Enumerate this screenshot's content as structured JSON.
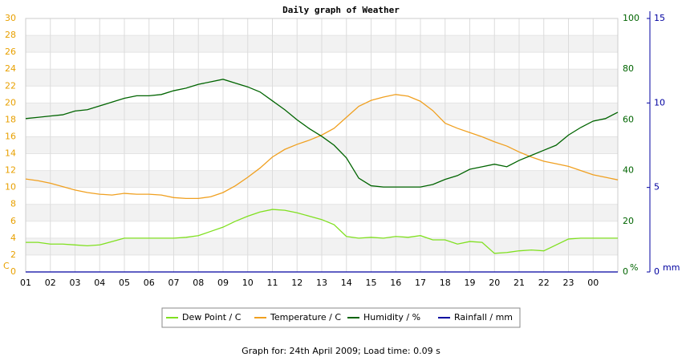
{
  "chart_data": {
    "type": "line",
    "title": "Daily graph of Weather",
    "footer": "Graph for: 24th April 2009; Load time: 0.09 s",
    "xlim": [
      0,
      24
    ],
    "xticks": [
      {
        "value": 0,
        "label": "01"
      },
      {
        "value": 1,
        "label": "02"
      },
      {
        "value": 2,
        "label": "03"
      },
      {
        "value": 3,
        "label": "04"
      },
      {
        "value": 4,
        "label": "05"
      },
      {
        "value": 5,
        "label": "06"
      },
      {
        "value": 6,
        "label": "07"
      },
      {
        "value": 7,
        "label": "08"
      },
      {
        "value": 8,
        "label": "09"
      },
      {
        "value": 9,
        "label": "10"
      },
      {
        "value": 10,
        "label": "11"
      },
      {
        "value": 11,
        "label": "12"
      },
      {
        "value": 12,
        "label": "13"
      },
      {
        "value": 13,
        "label": "14"
      },
      {
        "value": 14,
        "label": "15"
      },
      {
        "value": 15,
        "label": "16"
      },
      {
        "value": 16,
        "label": "17"
      },
      {
        "value": 17,
        "label": "18"
      },
      {
        "value": 18,
        "label": "19"
      },
      {
        "value": 19,
        "label": "20"
      },
      {
        "value": 20,
        "label": "21"
      },
      {
        "value": 21,
        "label": "22"
      },
      {
        "value": 22,
        "label": "23"
      },
      {
        "value": 23,
        "label": "00"
      }
    ],
    "ylim": [
      0,
      30
    ],
    "yticks": [
      0,
      2,
      4,
      6,
      8,
      10,
      12,
      14,
      16,
      18,
      20,
      22,
      24,
      26,
      28,
      30
    ],
    "y_unit": "C",
    "y_color": "#e8a000",
    "y2lim": [
      0,
      100
    ],
    "y2ticks": [
      0,
      20,
      40,
      60,
      80,
      100
    ],
    "y2_unit": "%",
    "y2_color": "#006400",
    "y3lim": [
      0,
      15
    ],
    "y3ticks": [
      0,
      5,
      10,
      15
    ],
    "y3_unit": "mm",
    "y3_color": "#0000a0",
    "grid": true,
    "x": [
      0,
      0.5,
      1,
      1.5,
      2,
      2.5,
      3,
      3.5,
      4,
      4.5,
      5,
      5.5,
      6,
      6.5,
      7,
      7.5,
      8,
      8.5,
      9,
      9.5,
      10,
      10.5,
      11,
      11.5,
      12,
      12.5,
      13,
      13.5,
      14,
      14.5,
      15,
      15.5,
      16,
      16.5,
      17,
      17.5,
      18,
      18.5,
      19,
      19.5,
      20,
      20.5,
      21,
      21.5,
      22,
      22.5,
      23,
      23.5,
      24
    ],
    "series": [
      {
        "name": "Dew Point / C",
        "color": "#80e020",
        "axis": "y",
        "values": [
          3.5,
          3.5,
          3.3,
          3.3,
          3.2,
          3.1,
          3.2,
          3.6,
          4.0,
          4.0,
          4.0,
          4.0,
          4.0,
          4.1,
          4.3,
          4.8,
          5.3,
          6.0,
          6.6,
          7.1,
          7.4,
          7.3,
          7.0,
          6.6,
          6.2,
          5.6,
          4.2,
          4.0,
          4.1,
          4.0,
          4.2,
          4.1,
          4.3,
          3.8,
          3.8,
          3.3,
          3.6,
          3.5,
          2.2,
          2.3,
          2.5,
          2.6,
          2.5,
          3.2,
          3.9,
          4.0,
          4.0,
          4.0,
          4.0
        ]
      },
      {
        "name": "Temperature / C",
        "color": "#f0a020",
        "axis": "y",
        "values": [
          11.0,
          10.8,
          10.5,
          10.1,
          9.7,
          9.4,
          9.2,
          9.1,
          9.3,
          9.2,
          9.2,
          9.1,
          8.8,
          8.7,
          8.7,
          8.9,
          9.4,
          10.2,
          11.2,
          12.3,
          13.6,
          14.5,
          15.1,
          15.6,
          16.2,
          17.0,
          18.3,
          19.6,
          20.3,
          20.7,
          21.0,
          20.8,
          20.2,
          19.1,
          17.6,
          17.0,
          16.5,
          16.0,
          15.4,
          14.9,
          14.2,
          13.6,
          13.1,
          12.8,
          12.5,
          12.0,
          11.5,
          11.2,
          10.9
        ]
      },
      {
        "name": "Humidity / %",
        "color": "#006400",
        "axis": "y2",
        "values": [
          60.5,
          61,
          61.5,
          62,
          63.5,
          64,
          65.5,
          67,
          68.5,
          69.5,
          69.5,
          70,
          71.5,
          72.5,
          74,
          75,
          76,
          74.5,
          73,
          71,
          67.5,
          64,
          60,
          56.5,
          53.5,
          50,
          45,
          37,
          34,
          33.5,
          33.5,
          33.5,
          33.5,
          34.5,
          36.5,
          38,
          40.5,
          41.5,
          42.5,
          41.5,
          44,
          46,
          48,
          50,
          54,
          57,
          59.5,
          60.5,
          63
        ]
      },
      {
        "name": "Rainfall / mm",
        "color": "#0000a0",
        "axis": "y3",
        "values": [
          0,
          0,
          0,
          0,
          0,
          0,
          0,
          0,
          0,
          0,
          0,
          0,
          0,
          0,
          0,
          0,
          0,
          0,
          0,
          0,
          0,
          0,
          0,
          0,
          0,
          0,
          0,
          0,
          0,
          0,
          0,
          0,
          0,
          0,
          0,
          0,
          0,
          0,
          0,
          0,
          0,
          0,
          0,
          0,
          0,
          0,
          0,
          0,
          0
        ]
      }
    ]
  }
}
